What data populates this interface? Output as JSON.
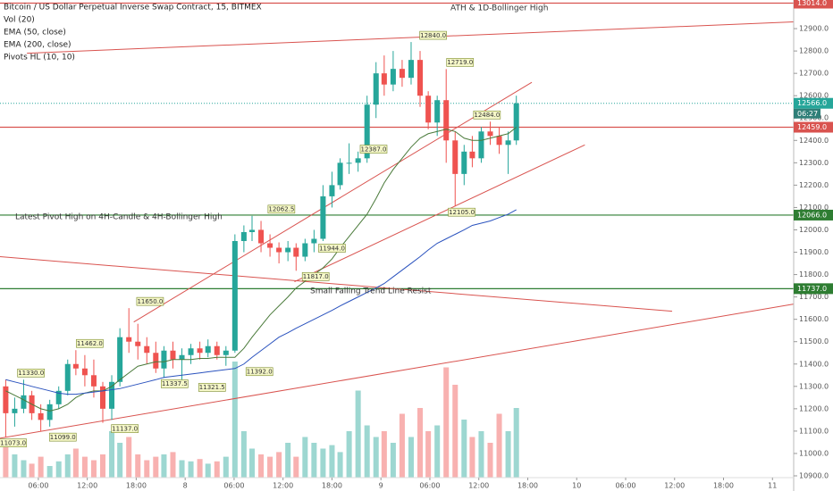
{
  "chart_data": {
    "type": "candlestick",
    "title": "Bitcoin / US Dollar Perpetual Inverse Swap Contract, 15, BITMEX",
    "candles": {
      "x": [
        2.0,
        3.1,
        4.2,
        5.2,
        6.3,
        7.4,
        8.5,
        9.6,
        10.6,
        11.7,
        12.8,
        13.9,
        15.0,
        16.0,
        17.1,
        18.2,
        19.3,
        20.4,
        21.4,
        22.5,
        23.6,
        24.7,
        25.8,
        26.8,
        27.9,
        29.0,
        30.1,
        31.2,
        32.2,
        33.3,
        34.4,
        35.5,
        36.6,
        37.6,
        38.7,
        39.8,
        40.9,
        42.0,
        43.0,
        44.1,
        45.2,
        46.3,
        47.4,
        48.4,
        49.5,
        50.6,
        51.7,
        52.8,
        53.8,
        54.9,
        56.0,
        57.1,
        58.2,
        59.2,
        60.3,
        61.4,
        62.5,
        63.6,
        64.6
      ],
      "open": [
        11300,
        11180,
        11200,
        11260,
        11180,
        11150,
        11220,
        11280,
        11400,
        11380,
        11350,
        11300,
        11200,
        11320,
        11520,
        11500,
        11480,
        11450,
        11380,
        11460,
        11420,
        11440,
        11470,
        11450,
        11480,
        11440,
        11460,
        11950,
        11990,
        12000,
        11940,
        11920,
        11900,
        11920,
        11880,
        11940,
        11960,
        12150,
        12200,
        12300,
        12300,
        12320,
        12560,
        12700,
        12650,
        12720,
        12680,
        12760,
        12600,
        12480,
        12580,
        12400,
        12250,
        12350,
        12320,
        12440,
        12420,
        12380,
        12400
      ],
      "high": [
        11330,
        11250,
        11330,
        11280,
        11220,
        11240,
        11300,
        11420,
        11462,
        11440,
        11420,
        11320,
        11350,
        11560,
        11650,
        11580,
        11520,
        11500,
        11480,
        11500,
        11470,
        11490,
        11500,
        11510,
        11500,
        11480,
        11980,
        12020,
        12062.5,
        12040,
        11980,
        11944,
        11950,
        11940,
        11960,
        12000,
        12200,
        12260,
        12320,
        12387,
        12350,
        12600,
        12750,
        12780,
        12800,
        12760,
        12840,
        12800,
        12620,
        12600,
        12719,
        12440,
        12380,
        12420,
        12460,
        12484,
        12460,
        12440,
        12600
      ],
      "low": [
        11073,
        11120,
        11180,
        11150,
        11099,
        11120,
        11200,
        11260,
        11350,
        11300,
        11250,
        11137,
        11150,
        11300,
        11450,
        11420,
        11400,
        11360,
        11337.5,
        11380,
        11321.5,
        11400,
        11420,
        11430,
        11420,
        11392,
        11450,
        11900,
        11950,
        11900,
        11880,
        11850,
        11860,
        11817,
        11860,
        11900,
        11950,
        12100,
        12180,
        12250,
        12260,
        12300,
        12500,
        12600,
        12620,
        12640,
        12650,
        12550,
        12450,
        12420,
        12300,
        12105,
        12200,
        12280,
        12300,
        12380,
        12340,
        12250,
        12380
      ],
      "close": [
        11180,
        11200,
        11260,
        11180,
        11150,
        11220,
        11280,
        11400,
        11380,
        11350,
        11300,
        11200,
        11320,
        11520,
        11500,
        11480,
        11450,
        11380,
        11460,
        11420,
        11440,
        11470,
        11450,
        11480,
        11440,
        11460,
        11950,
        11990,
        12000,
        11940,
        11920,
        11900,
        11920,
        11880,
        11940,
        11960,
        12150,
        12200,
        12300,
        12300,
        12320,
        12560,
        12700,
        12650,
        12720,
        12680,
        12760,
        12600,
        12480,
        12580,
        12400,
        12250,
        12350,
        12320,
        12440,
        12420,
        12380,
        12400,
        12566
      ],
      "up_color": "#26a69a",
      "down_color": "#ef5350"
    },
    "volume": {
      "name": "Vol (20)",
      "values": [
        30,
        20,
        15,
        12,
        18,
        10,
        14,
        20,
        25,
        18,
        15,
        20,
        40,
        30,
        35,
        20,
        15,
        18,
        20,
        22,
        15,
        14,
        16,
        12,
        14,
        18,
        100,
        40,
        25,
        20,
        18,
        22,
        30,
        18,
        35,
        30,
        25,
        28,
        22,
        40,
        75,
        45,
        35,
        40,
        30,
        55,
        35,
        60,
        40,
        45,
        95,
        80,
        50,
        35,
        40,
        30,
        55,
        40,
        60
      ]
    },
    "series": [
      {
        "name": "EMA (50, close)",
        "color": "#4a7a3a",
        "values": [
          11280,
          11260,
          11240,
          11220,
          11200,
          11190,
          11200,
          11220,
          11250,
          11270,
          11280,
          11280,
          11300,
          11330,
          11360,
          11390,
          11400,
          11410,
          11410,
          11420,
          11420,
          11420,
          11425,
          11425,
          11430,
          11430,
          11430,
          11470,
          11520,
          11570,
          11620,
          11660,
          11700,
          11740,
          11770,
          11800,
          11830,
          11870,
          11920,
          11970,
          12020,
          12070,
          12140,
          12210,
          12270,
          12320,
          12370,
          12410,
          12430,
          12440,
          12450,
          12440,
          12410,
          12400,
          12400,
          12410,
          12420,
          12430,
          12459
        ]
      },
      {
        "name": "EMA (200, close)",
        "color": "#2a52be",
        "values": [
          11330,
          11320,
          11310,
          11300,
          11290,
          11280,
          11270,
          11265,
          11265,
          11270,
          11275,
          11280,
          11285,
          11290,
          11300,
          11310,
          11320,
          11330,
          11340,
          11345,
          11350,
          11355,
          11360,
          11365,
          11370,
          11375,
          11380,
          11400,
          11430,
          11460,
          11490,
          11520,
          11540,
          11560,
          11580,
          11600,
          11620,
          11640,
          11660,
          11680,
          11700,
          11720,
          11740,
          11760,
          11790,
          11820,
          11850,
          11880,
          11910,
          11940,
          11960,
          11980,
          12000,
          12020,
          12030,
          12040,
          12055,
          12070,
          12090
        ]
      }
    ],
    "pivots_name": "Pivots HL (10, 10)",
    "pivots": [
      {
        "x": 5.1,
        "value": 11330,
        "label": "11330.0"
      },
      {
        "x": 2.9,
        "value": 11073,
        "label": "11073.0"
      },
      {
        "x": 9.0,
        "value": 11099,
        "label": "11099.0"
      },
      {
        "x": 12.3,
        "value": 11462,
        "label": "11462.0"
      },
      {
        "x": 19.7,
        "value": 11650,
        "label": "11650.0"
      },
      {
        "x": 16.6,
        "value": 11137,
        "label": "11137.0"
      },
      {
        "x": 22.7,
        "value": 11337.5,
        "label": "11337.5"
      },
      {
        "x": 27.3,
        "value": 11321.5,
        "label": "11321.5"
      },
      {
        "x": 33.1,
        "value": 11392,
        "label": "11392.0"
      },
      {
        "x": 35.8,
        "value": 12062.5,
        "label": "12062.5"
      },
      {
        "x": 42.0,
        "value": 11944,
        "label": "11944.0"
      },
      {
        "x": 40.0,
        "value": 11817,
        "label": "11817.0"
      },
      {
        "x": 47.1,
        "value": 12387,
        "label": "12387.0"
      },
      {
        "x": 54.4,
        "value": 12840,
        "label": "12840.0"
      },
      {
        "x": 57.7,
        "value": 12719,
        "label": "12719.0"
      },
      {
        "x": 61.0,
        "value": 12484,
        "label": "12484.0"
      },
      {
        "x": 57.9,
        "value": 12105,
        "label": "12105.0"
      }
    ],
    "trend_lines": [
      {
        "x": [
          4.6,
          98.6
        ],
        "y": [
          12790,
          12930
        ],
        "color": "#d9534f"
      },
      {
        "x": [
          17.7,
          66.5
        ],
        "y": [
          11588,
          12660
        ],
        "color": "#d9534f"
      },
      {
        "x": [
          37.4,
          73.0
        ],
        "y": [
          11768,
          12380
        ],
        "color": "#d9534f"
      },
      {
        "x": [
          1.3,
          83.7
        ],
        "y": [
          11880,
          11636
        ],
        "color": "#d9534f"
      },
      {
        "x": [
          1.3,
          98.6
        ],
        "y": [
          11068,
          11668
        ],
        "color": "#d9534f"
      }
    ],
    "levels": [
      {
        "value": 13014,
        "label": "13014.0",
        "color": "#d9534f"
      },
      {
        "value": 12459,
        "label": "12459.0",
        "color": "#d9534f"
      },
      {
        "value": 12066,
        "label": "12066.0",
        "color": "#2e7d32"
      },
      {
        "value": 11737,
        "label": "11737.0",
        "color": "#2e7d32"
      }
    ],
    "last_price": {
      "value": 12566,
      "label": "12566.0",
      "countdown": "06:27",
      "color": "#26a69a"
    },
    "annotations": [
      {
        "text": "ATH & 1D-Bollinger High",
        "color": "#d9534f"
      },
      {
        "text": "Latest Pivot High on 4H-Candle & 4H-Bollinger High",
        "color": "#d9534f"
      },
      {
        "text": "Small Falling Trend Line Resist",
        "color": "#d9534f"
      }
    ],
    "xlim": [
      1.3,
      98.6
    ],
    "ylim": [
      10892,
      13028
    ],
    "xticks": [
      {
        "value": 6,
        "label": "06:00"
      },
      {
        "value": 12,
        "label": "12:00"
      },
      {
        "value": 18,
        "label": "18:00"
      },
      {
        "value": 24,
        "label": "8"
      },
      {
        "value": 30,
        "label": "06:00"
      },
      {
        "value": 36,
        "label": "12:00"
      },
      {
        "value": 42,
        "label": "18:00"
      },
      {
        "value": 48,
        "label": "9"
      },
      {
        "value": 54,
        "label": "06:00"
      },
      {
        "value": 60,
        "label": "12:00"
      },
      {
        "value": 66,
        "label": "18:00"
      },
      {
        "value": 72,
        "label": "10"
      },
      {
        "value": 78,
        "label": "06:00"
      },
      {
        "value": 84,
        "label": "12:00"
      },
      {
        "value": 90,
        "label": "18:00"
      },
      {
        "value": 96,
        "label": "11"
      }
    ],
    "yticks": [
      {
        "value": 10900,
        "label": "10900.0"
      },
      {
        "value": 11000,
        "label": "11000.0"
      },
      {
        "value": 11100,
        "label": "11100.0"
      },
      {
        "value": 11200,
        "label": "11200.0"
      },
      {
        "value": 11300,
        "label": "11300.0"
      },
      {
        "value": 11400,
        "label": "11400.0"
      },
      {
        "value": 11500,
        "label": "11500.0"
      },
      {
        "value": 11600,
        "label": "11600.0"
      },
      {
        "value": 11700,
        "label": "11700.0"
      },
      {
        "value": 11800,
        "label": "11800.0"
      },
      {
        "value": 11900,
        "label": "11900.0"
      },
      {
        "value": 12000,
        "label": "12000.0"
      },
      {
        "value": 12100,
        "label": "12100.0"
      },
      {
        "value": 12200,
        "label": "12200.0"
      },
      {
        "value": 12300,
        "label": "12300.0"
      },
      {
        "value": 12400,
        "label": "12400.0"
      },
      {
        "value": 12500,
        "label": "12500.0"
      },
      {
        "value": 12600,
        "label": "12600.0"
      },
      {
        "value": 12700,
        "label": "12700.0"
      },
      {
        "value": 12800,
        "label": "12800.0"
      },
      {
        "value": 12900,
        "label": "12900.0"
      }
    ],
    "grid": false
  }
}
